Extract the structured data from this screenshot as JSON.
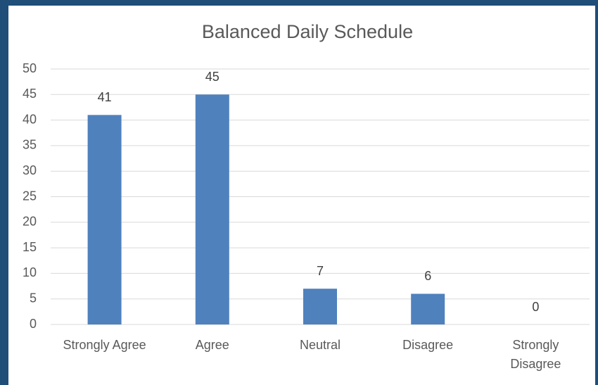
{
  "chart_data": {
    "type": "bar",
    "title": "Balanced Daily Schedule",
    "categories": [
      "Strongly Agree",
      "Agree",
      "Neutral",
      "Disagree",
      "Strongly Disagree"
    ],
    "values": [
      41,
      45,
      7,
      6,
      0
    ],
    "color": "#4f81bd",
    "ylim": [
      0,
      50
    ],
    "yticks": [
      0,
      5,
      10,
      15,
      20,
      25,
      30,
      35,
      40,
      45,
      50
    ],
    "grid": true
  }
}
